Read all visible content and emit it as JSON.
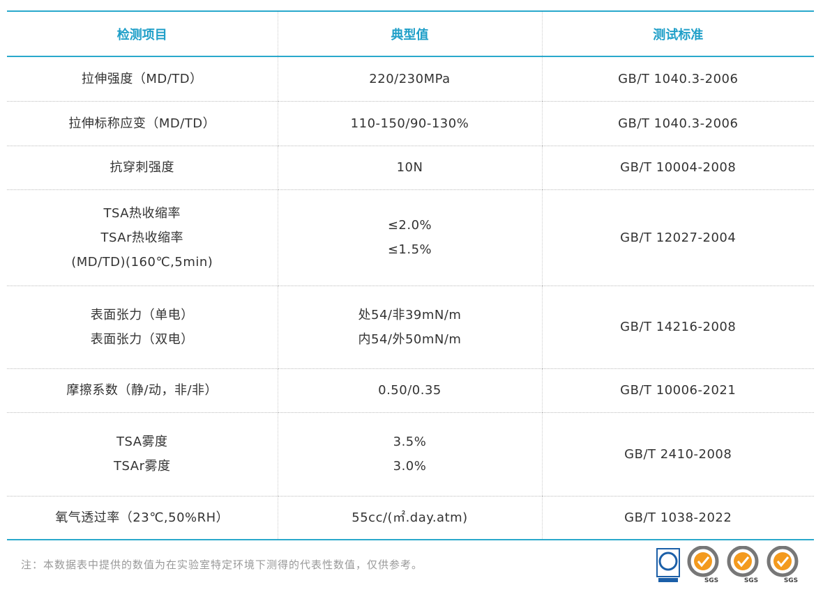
{
  "table": {
    "header": [
      "检测项目",
      "典型值",
      "测试标准"
    ],
    "rows": [
      [
        [
          "拉伸强度（MD/TD）"
        ],
        [
          "220/230MPa"
        ],
        [
          "GB/T 1040.3-2006"
        ]
      ],
      [
        [
          "拉伸标称应变（MD/TD）"
        ],
        [
          "110-150/90-130%"
        ],
        [
          "GB/T 1040.3-2006"
        ]
      ],
      [
        [
          "抗穿刺强度"
        ],
        [
          "10N"
        ],
        [
          "GB/T 10004-2008"
        ]
      ],
      [
        [
          "TSA热收缩率",
          "TSAr热收缩率",
          "(MD/TD)(160℃,5min)"
        ],
        [
          "≤2.0%",
          "≤1.5%"
        ],
        [
          "GB/T 12027-2004"
        ]
      ],
      [
        [
          "表面张力（单电）",
          "表面张力（双电）"
        ],
        [
          "处54/非39mN/m",
          "内54/外50mN/m"
        ],
        [
          "GB/T 14216-2008"
        ]
      ],
      [
        [
          "摩擦系数（静/动，非/非）"
        ],
        [
          "0.50/0.35"
        ],
        [
          "GB/T 10006-2021"
        ]
      ],
      [
        [
          "TSA雾度",
          "TSAr雾度"
        ],
        [
          "3.5%",
          "3.0%"
        ],
        [
          "GB/T 2410-2008"
        ]
      ],
      [
        [
          "氧气透过率（23℃,50%RH）"
        ],
        [
          "55cc/(㎡.day.atm)"
        ],
        [
          "GB/T 1038-2022"
        ]
      ]
    ]
  },
  "note": "注：本数据表中提供的数值为在实验室特定环境下测得的代表性数值，仅供参考。",
  "logos": [
    "SGS",
    "SGS",
    "SGS"
  ]
}
